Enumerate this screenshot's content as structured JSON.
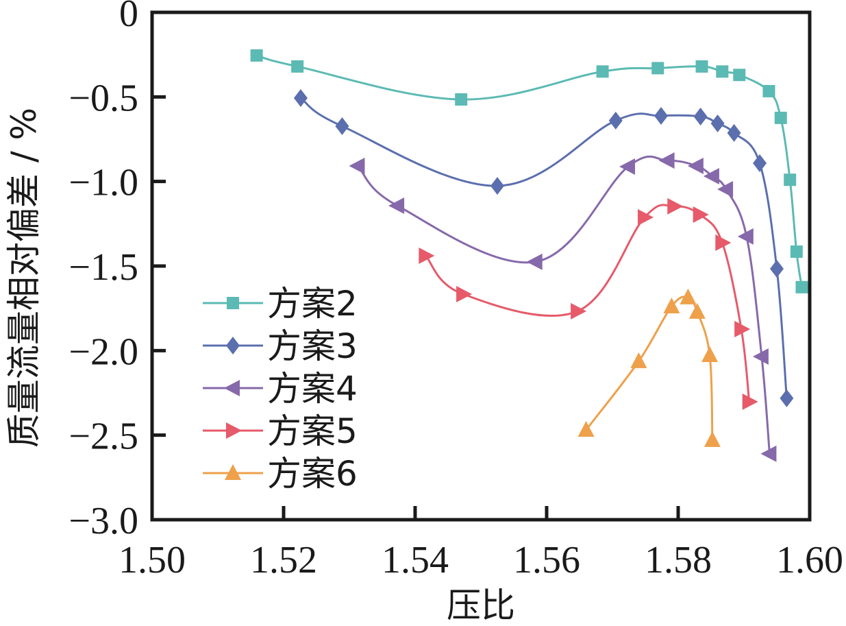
{
  "chart_data": {
    "type": "line",
    "title": "",
    "xlabel": "压比",
    "ylabel": "质量流量相对偏差 / %",
    "xlim": [
      1.5,
      1.6
    ],
    "ylim": [
      -3.0,
      0
    ],
    "xticks": [
      1.5,
      1.52,
      1.54,
      1.56,
      1.58,
      1.6
    ],
    "xtick_labels": [
      "1.50",
      "1.52",
      "1.54",
      "1.56",
      "1.58",
      "1.60"
    ],
    "yticks": [
      0,
      -0.5,
      -1.0,
      -1.5,
      -2.0,
      -2.5,
      -3.0
    ],
    "ytick_labels": [
      "0",
      "−0.5",
      "−1.0",
      "−1.5",
      "−2.0",
      "−2.5",
      "−3.0"
    ],
    "grid": false,
    "legend_position": "bottom-left",
    "series": [
      {
        "name": "方案2",
        "marker": "square",
        "color": "#5bbab3",
        "points": [
          [
            1.5159,
            -0.255
          ],
          [
            1.5221,
            -0.32
          ],
          [
            1.547,
            -0.515
          ],
          [
            1.5685,
            -0.35
          ],
          [
            1.5769,
            -0.33
          ],
          [
            1.5836,
            -0.32
          ],
          [
            1.5867,
            -0.35
          ],
          [
            1.5893,
            -0.37
          ],
          [
            1.5938,
            -0.466
          ],
          [
            1.5956,
            -0.624
          ],
          [
            1.597,
            -0.99
          ],
          [
            1.598,
            -1.415
          ],
          [
            1.5988,
            -1.625
          ]
        ]
      },
      {
        "name": "方案3",
        "marker": "diamond",
        "color": "#5b6fae",
        "points": [
          [
            1.5226,
            -0.507
          ],
          [
            1.5289,
            -0.673
          ],
          [
            1.5525,
            -1.026
          ],
          [
            1.5705,
            -0.64
          ],
          [
            1.5774,
            -0.612
          ],
          [
            1.5834,
            -0.616
          ],
          [
            1.586,
            -0.657
          ],
          [
            1.5885,
            -0.713
          ],
          [
            1.5924,
            -0.892
          ],
          [
            1.595,
            -1.516
          ],
          [
            1.5965,
            -2.282
          ]
        ]
      },
      {
        "name": "方案4",
        "marker": "triangle-left",
        "color": "#8669aa",
        "points": [
          [
            1.5313,
            -0.908
          ],
          [
            1.5373,
            -1.143
          ],
          [
            1.5583,
            -1.475
          ],
          [
            1.5724,
            -0.912
          ],
          [
            1.5784,
            -0.876
          ],
          [
            1.5828,
            -0.908
          ],
          [
            1.5852,
            -0.969
          ],
          [
            1.5873,
            -1.046
          ],
          [
            1.5904,
            -1.325
          ],
          [
            1.5927,
            -2.035
          ],
          [
            1.5939,
            -2.61
          ]
        ]
      },
      {
        "name": "方案5",
        "marker": "triangle-right",
        "color": "#e65a6a",
        "points": [
          [
            1.5416,
            -1.439
          ],
          [
            1.5473,
            -1.666
          ],
          [
            1.5647,
            -1.767
          ],
          [
            1.5749,
            -1.212
          ],
          [
            1.5794,
            -1.147
          ],
          [
            1.5833,
            -1.196
          ],
          [
            1.5867,
            -1.362
          ],
          [
            1.5896,
            -1.873
          ],
          [
            1.5908,
            -2.302
          ]
        ]
      },
      {
        "name": "方案6",
        "marker": "triangle-up",
        "color": "#eea04a",
        "points": [
          [
            1.566,
            -2.469
          ],
          [
            1.574,
            -2.063
          ],
          [
            1.579,
            -1.739
          ],
          [
            1.5815,
            -1.686
          ],
          [
            1.5829,
            -1.771
          ],
          [
            1.5848,
            -2.027
          ],
          [
            1.5852,
            -2.529
          ]
        ]
      }
    ]
  }
}
